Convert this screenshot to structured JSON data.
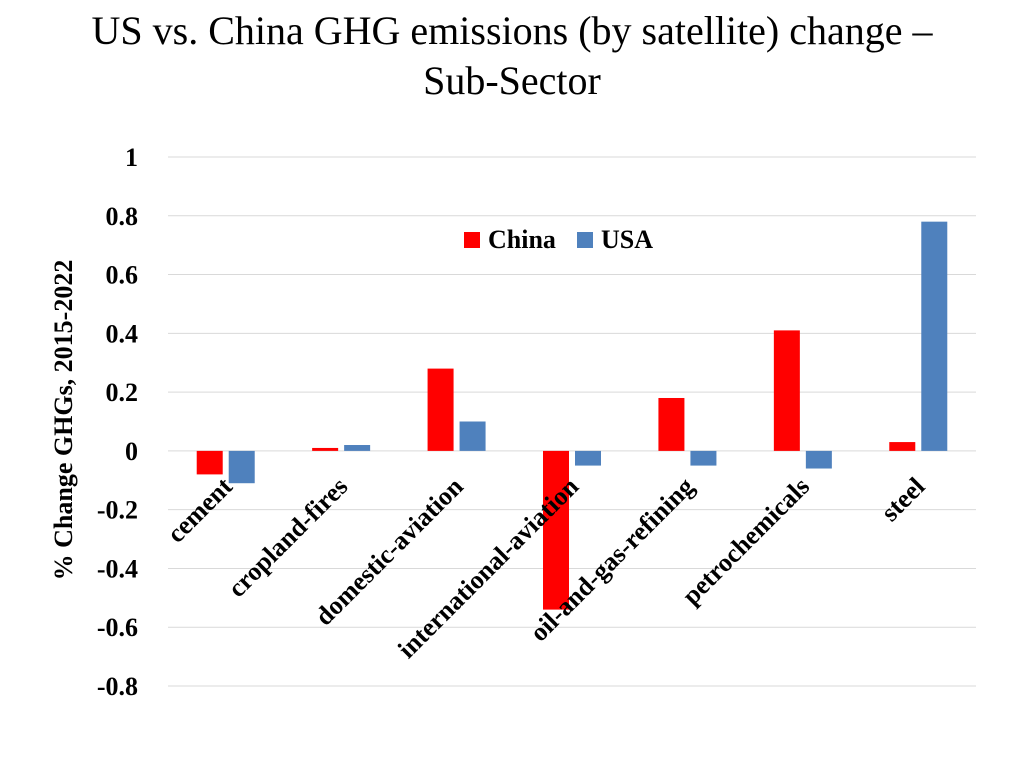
{
  "title": {
    "line1": "US vs. China GHG emissions (by satellite) change –",
    "line2": "Sub-Sector"
  },
  "chart_data": {
    "type": "bar",
    "categories": [
      "cement",
      "cropland-fires",
      "domestic-aviation",
      "international-aviation",
      "oil-and-gas-refining",
      "petrochemicals",
      "steel"
    ],
    "series": [
      {
        "name": "China",
        "color": "#ff0000",
        "values": [
          -0.08,
          0.01,
          0.28,
          -0.54,
          0.18,
          0.41,
          0.03
        ]
      },
      {
        "name": "USA",
        "color": "#4f81bd",
        "values": [
          -0.11,
          0.02,
          0.1,
          -0.05,
          -0.05,
          -0.06,
          0.78
        ]
      }
    ],
    "ylabel": "% Change GHGs, 2015-2022",
    "xlabel": "",
    "ylim": [
      -0.8,
      1
    ],
    "yticks": [
      1,
      0.8,
      0.6,
      0.4,
      0.2,
      0,
      -0.2,
      -0.4,
      -0.6,
      -0.8
    ],
    "grid": true,
    "legend_position": "top-center"
  }
}
